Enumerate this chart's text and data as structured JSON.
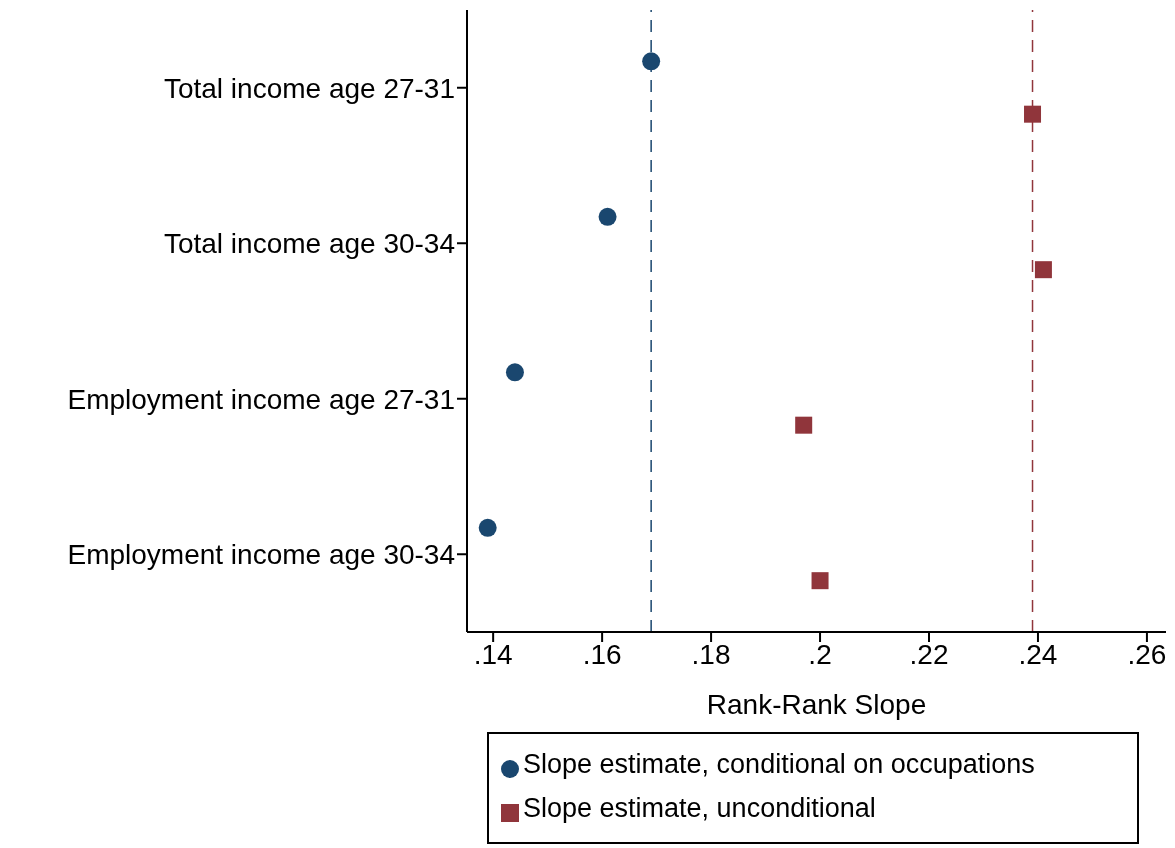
{
  "chart_data": {
    "type": "scatter",
    "orientation": "horizontal",
    "categories": [
      "Total income age 27-31",
      "Total income age 30-34",
      "Employment income age 27-31",
      "Employment income age 30-34"
    ],
    "xlabel": "Rank-Rank Slope",
    "xlim": [
      0.1352,
      0.2635
    ],
    "xticks": [
      {
        "value": 0.14,
        "label": ".14"
      },
      {
        "value": 0.16,
        "label": ".16"
      },
      {
        "value": 0.18,
        "label": ".18"
      },
      {
        "value": 0.2,
        "label": ".2"
      },
      {
        "value": 0.22,
        "label": ".22"
      },
      {
        "value": 0.24,
        "label": ".24"
      },
      {
        "value": 0.26,
        "label": ".26"
      }
    ],
    "legend": "bottom",
    "series": [
      {
        "name": "Slope estimate, conditional on occupations",
        "color": "#1a476f",
        "marker": "circle",
        "values": [
          0.169,
          0.161,
          0.144,
          0.139
        ]
      },
      {
        "name": "Slope estimate, unconditional",
        "color": "#90353b",
        "marker": "square",
        "values": [
          0.239,
          0.241,
          0.197,
          0.2
        ]
      }
    ],
    "ref_lines": [
      {
        "axis": "x",
        "value": 0.169,
        "color": "#1a476f",
        "line_style": "dashed"
      },
      {
        "axis": "x",
        "value": 0.239,
        "color": "#90353b",
        "line_style": "dashed"
      }
    ]
  }
}
